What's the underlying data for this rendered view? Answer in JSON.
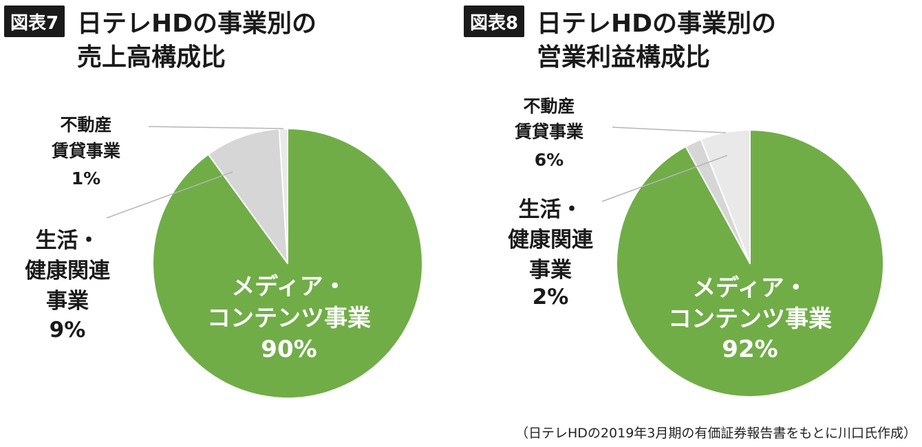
{
  "colors": {
    "media": "#70ad47",
    "lifestyle": "#d6d6d6",
    "realestate": "#e9e9e9",
    "badge_bg": "#1a1a1a",
    "badge_text": "#ffffff",
    "leader": "#b5b5b5"
  },
  "source": "（日テレHDの2019年3月期の有価証券報告書をもとに川口氏作成）",
  "chart_data": [
    {
      "type": "pie",
      "figure_label": "図表7",
      "title": [
        "日テレHDの事業別の",
        "売上高構成比"
      ],
      "unit": "%",
      "slices": [
        {
          "name": [
            "メディア・",
            "コンテンツ事業"
          ],
          "value": 90,
          "value_label": "90%"
        },
        {
          "name": [
            "生活・",
            "健康関連",
            "事業"
          ],
          "value": 9,
          "value_label": "9%"
        },
        {
          "name": [
            "不動産",
            "賃貸事業"
          ],
          "value": 1,
          "value_label": "1%"
        }
      ]
    },
    {
      "type": "pie",
      "figure_label": "図表8",
      "title": [
        "日テレHDの事業別の",
        "営業利益構成比"
      ],
      "unit": "%",
      "slices": [
        {
          "name": [
            "メディア・",
            "コンテンツ事業"
          ],
          "value": 92,
          "value_label": "92%"
        },
        {
          "name": [
            "生活・",
            "健康関連",
            "事業"
          ],
          "value": 2,
          "value_label": "2%"
        },
        {
          "name": [
            "不動産",
            "賃貸事業"
          ],
          "value": 6,
          "value_label": "6%"
        }
      ]
    }
  ]
}
